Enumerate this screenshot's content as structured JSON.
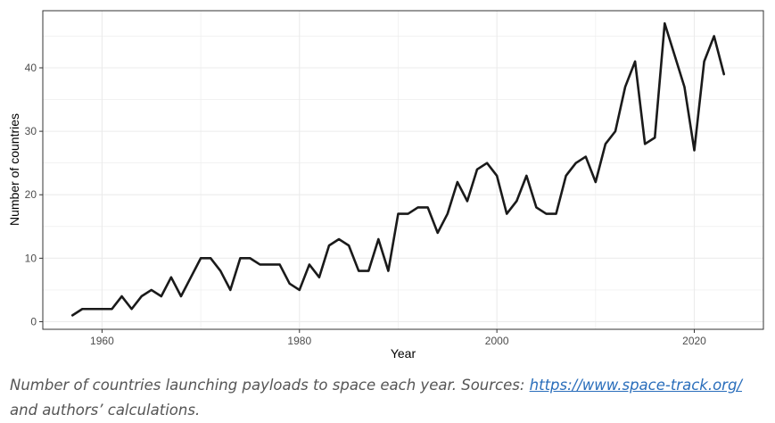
{
  "chart_data": {
    "type": "line",
    "xlabel": "Year",
    "ylabel": "Number of countries",
    "xlim": [
      1954,
      2027
    ],
    "ylim": [
      -1.2,
      49
    ],
    "x_ticks": [
      1960,
      1980,
      2000,
      2020
    ],
    "y_ticks": [
      0,
      10,
      20,
      30,
      40
    ],
    "x_tick_labels": [
      "1960",
      "1980",
      "2000",
      "2020"
    ],
    "y_tick_labels": [
      "0",
      "10",
      "20",
      "30",
      "40"
    ],
    "grid": true,
    "colors": {
      "line": "#1a1a1a",
      "grid": "#ebebeb",
      "border": "#333333"
    },
    "series": [
      {
        "x": [
          1957,
          1958,
          1959,
          1960,
          1961,
          1962,
          1963,
          1964,
          1965,
          1966,
          1967,
          1968,
          1969,
          1970,
          1971,
          1972,
          1973,
          1974,
          1975,
          1976,
          1977,
          1978,
          1979,
          1980,
          1981,
          1982,
          1983,
          1984,
          1985,
          1986,
          1987,
          1988,
          1989,
          1990,
          1991,
          1992,
          1993,
          1994,
          1995,
          1996,
          1997,
          1998,
          1999,
          2000,
          2001,
          2002,
          2003,
          2004,
          2005,
          2006,
          2007,
          2008,
          2009,
          2010,
          2011,
          2012,
          2013,
          2014,
          2015,
          2016,
          2017,
          2018,
          2019,
          2020,
          2021,
          2022,
          2023
        ],
        "y": [
          1,
          2,
          2,
          2,
          2,
          4,
          2,
          4,
          5,
          4,
          7,
          4,
          7,
          10,
          10,
          8,
          5,
          10,
          10,
          9,
          9,
          9,
          6,
          5,
          9,
          7,
          12,
          13,
          12,
          8,
          8,
          13,
          8,
          17,
          17,
          18,
          18,
          14,
          17,
          22,
          19,
          24,
          25,
          23,
          17,
          19,
          23,
          18,
          17,
          17,
          23,
          25,
          26,
          22,
          28,
          30,
          37,
          41,
          28,
          29,
          47,
          42,
          37,
          27,
          41,
          45,
          39
        ]
      }
    ]
  },
  "caption": {
    "text_before": "Number of countries launching payloads to space each year. Sources: ",
    "link_text": "https://www.space-track.org/",
    "text_after": " and authors’ calculations."
  }
}
